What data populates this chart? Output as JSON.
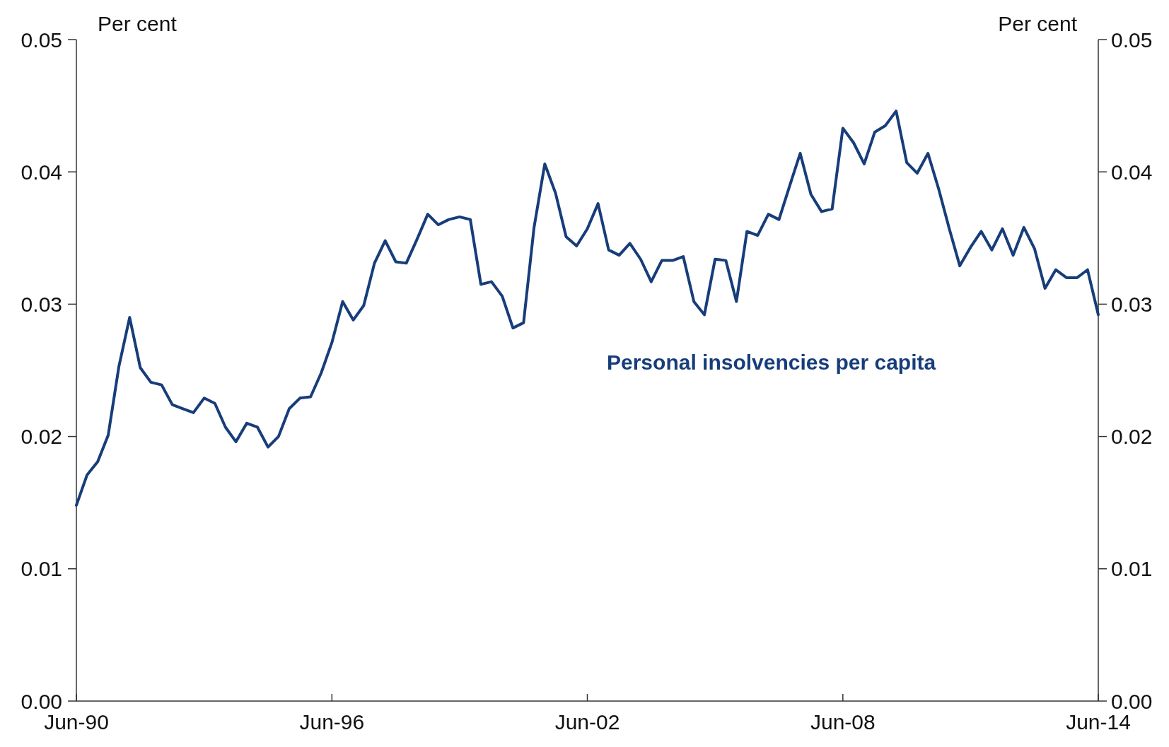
{
  "chart_data": {
    "type": "line",
    "ylabel": "Per cent",
    "y2label": "Per cent",
    "x": [
      "1990-06",
      "1990-09",
      "1990-12",
      "1991-03",
      "1991-06",
      "1991-09",
      "1991-12",
      "1992-03",
      "1992-06",
      "1992-09",
      "1992-12",
      "1993-03",
      "1993-06",
      "1993-09",
      "1993-12",
      "1994-03",
      "1994-06",
      "1994-09",
      "1994-12",
      "1995-03",
      "1995-06",
      "1995-09",
      "1995-12",
      "1996-03",
      "1996-06",
      "1996-09",
      "1996-12",
      "1997-03",
      "1997-06",
      "1997-09",
      "1997-12",
      "1998-03",
      "1998-06",
      "1998-09",
      "1998-12",
      "1999-03",
      "1999-06",
      "1999-09",
      "1999-12",
      "2000-03",
      "2000-06",
      "2000-09",
      "2000-12",
      "2001-03",
      "2001-06",
      "2001-09",
      "2001-12",
      "2002-03",
      "2002-06",
      "2002-09",
      "2002-12",
      "2003-03",
      "2003-06",
      "2003-09",
      "2003-12",
      "2004-03",
      "2004-06",
      "2004-09",
      "2004-12",
      "2005-03",
      "2005-06",
      "2005-09",
      "2005-12",
      "2006-03",
      "2006-06",
      "2006-09",
      "2006-12",
      "2007-03",
      "2007-06",
      "2007-09",
      "2007-12",
      "2008-03",
      "2008-06",
      "2008-09",
      "2008-12",
      "2009-03",
      "2009-06",
      "2009-09",
      "2009-12",
      "2010-03",
      "2010-06",
      "2010-09",
      "2010-12",
      "2011-03",
      "2011-06",
      "2011-09",
      "2011-12",
      "2012-03",
      "2012-06",
      "2012-09",
      "2012-12",
      "2013-03",
      "2013-06",
      "2013-09",
      "2013-12",
      "2014-03",
      "2014-06"
    ],
    "series": [
      {
        "name": "Personal insolvencies per capita",
        "color": "#173d7a",
        "values": [
          0.0148,
          0.0171,
          0.0181,
          0.0201,
          0.0253,
          0.029,
          0.0252,
          0.0241,
          0.0239,
          0.0224,
          0.0221,
          0.0218,
          0.0229,
          0.0225,
          0.0207,
          0.0196,
          0.021,
          0.0207,
          0.0192,
          0.02,
          0.0221,
          0.0229,
          0.023,
          0.0248,
          0.0271,
          0.0302,
          0.0288,
          0.0299,
          0.0331,
          0.0348,
          0.0332,
          0.0331,
          0.0349,
          0.0368,
          0.036,
          0.0364,
          0.0366,
          0.0364,
          0.0315,
          0.0317,
          0.0306,
          0.0282,
          0.0286,
          0.0358,
          0.0406,
          0.0384,
          0.0351,
          0.0344,
          0.0357,
          0.0376,
          0.0341,
          0.0337,
          0.0346,
          0.0334,
          0.0317,
          0.0333,
          0.0333,
          0.0336,
          0.0302,
          0.0292,
          0.0334,
          0.0333,
          0.0302,
          0.0355,
          0.0352,
          0.0368,
          0.0364,
          0.0389,
          0.0414,
          0.0383,
          0.037,
          0.0372,
          0.0433,
          0.0422,
          0.0406,
          0.043,
          0.0435,
          0.0446,
          0.0407,
          0.0399,
          0.0414,
          0.0387,
          0.0357,
          0.0329,
          0.0343,
          0.0355,
          0.0341,
          0.0357,
          0.0337,
          0.0358,
          0.0342,
          0.0312,
          0.0326,
          0.032,
          0.032,
          0.0326,
          0.0292
        ]
      }
    ],
    "xlim": [
      "1990-06",
      "2014-06"
    ],
    "xticks": [
      {
        "value": "1990-06",
        "label": "Jun-90"
      },
      {
        "value": "1996-06",
        "label": "Jun-96"
      },
      {
        "value": "2002-06",
        "label": "Jun-02"
      },
      {
        "value": "2008-06",
        "label": "Jun-08"
      },
      {
        "value": "2014-06",
        "label": "Jun-14"
      }
    ],
    "ylim": [
      0,
      0.05
    ],
    "yticks": [
      {
        "value": 0,
        "label": "0.00"
      },
      {
        "value": 0.01,
        "label": "0.01"
      },
      {
        "value": 0.02,
        "label": "0.02"
      },
      {
        "value": 0.03,
        "label": "0.03"
      },
      {
        "value": 0.04,
        "label": "0.04"
      },
      {
        "value": 0.05,
        "label": "0.05"
      }
    ],
    "y2lim": [
      0,
      0.05
    ],
    "y2ticks": [
      {
        "value": 0,
        "label": "0.00"
      },
      {
        "value": 0.01,
        "label": "0.01"
      },
      {
        "value": 0.02,
        "label": "0.02"
      },
      {
        "value": 0.03,
        "label": "0.03"
      },
      {
        "value": 0.04,
        "label": "0.04"
      },
      {
        "value": 0.05,
        "label": "0.05"
      }
    ],
    "grid": false,
    "marker": "none",
    "line_style": "solid"
  }
}
